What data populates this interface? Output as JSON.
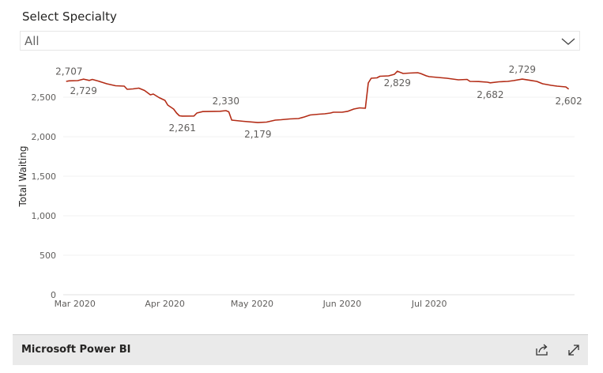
{
  "slicer": {
    "title": "Select Specialty",
    "selected": "All",
    "chevron_icon": "chevron-down-icon"
  },
  "chart_data": {
    "type": "line",
    "title": "",
    "xlabel": "",
    "ylabel": "Total Waiting",
    "ylim": [
      0,
      3000
    ],
    "yticks": [
      0,
      500,
      1000,
      1500,
      2000,
      2500
    ],
    "ytick_labels": [
      "0",
      "500",
      "1,000",
      "1,500",
      "2,000",
      "2,500"
    ],
    "xtick_labels": [
      "Mar 2020",
      "Apr 2020",
      "May 2020",
      "Jun 2020",
      "Jul 2020"
    ],
    "xtick_dates": [
      "2020-03-01",
      "2020-04-01",
      "2020-05-01",
      "2020-06-01",
      "2020-07-01"
    ],
    "gridlines": true,
    "line_color": "#b32c16",
    "series": [
      {
        "values": [
          [
            "2020-02-27",
            2700
          ],
          [
            "2020-02-28",
            2707
          ],
          [
            "2020-03-02",
            2710
          ],
          [
            "2020-03-04",
            2729
          ],
          [
            "2020-03-06",
            2712
          ],
          [
            "2020-03-07",
            2725
          ],
          [
            "2020-03-09",
            2705
          ],
          [
            "2020-03-12",
            2670
          ],
          [
            "2020-03-15",
            2645
          ],
          [
            "2020-03-18",
            2640
          ],
          [
            "2020-03-19",
            2600
          ],
          [
            "2020-03-21",
            2605
          ],
          [
            "2020-03-23",
            2615
          ],
          [
            "2020-03-25",
            2585
          ],
          [
            "2020-03-27",
            2530
          ],
          [
            "2020-03-28",
            2540
          ],
          [
            "2020-03-30",
            2495
          ],
          [
            "2020-04-01",
            2460
          ],
          [
            "2020-04-02",
            2400
          ],
          [
            "2020-04-04",
            2350
          ],
          [
            "2020-04-05",
            2300
          ],
          [
            "2020-04-06",
            2265
          ],
          [
            "2020-04-07",
            2261
          ],
          [
            "2020-04-11",
            2262
          ],
          [
            "2020-04-12",
            2300
          ],
          [
            "2020-04-14",
            2318
          ],
          [
            "2020-04-20",
            2322
          ],
          [
            "2020-04-22",
            2330
          ],
          [
            "2020-04-23",
            2315
          ],
          [
            "2020-04-24",
            2210
          ],
          [
            "2020-04-28",
            2195
          ],
          [
            "2020-05-03",
            2179
          ],
          [
            "2020-05-06",
            2185
          ],
          [
            "2020-05-09",
            2210
          ],
          [
            "2020-05-11",
            2215
          ],
          [
            "2020-05-14",
            2225
          ],
          [
            "2020-05-17",
            2230
          ],
          [
            "2020-05-19",
            2250
          ],
          [
            "2020-05-21",
            2275
          ],
          [
            "2020-05-24",
            2285
          ],
          [
            "2020-05-26",
            2290
          ],
          [
            "2020-05-28",
            2300
          ],
          [
            "2020-05-29",
            2310
          ],
          [
            "2020-06-01",
            2310
          ],
          [
            "2020-06-03",
            2322
          ],
          [
            "2020-06-05",
            2350
          ],
          [
            "2020-06-07",
            2365
          ],
          [
            "2020-06-09",
            2360
          ],
          [
            "2020-06-10",
            2680
          ],
          [
            "2020-06-11",
            2740
          ],
          [
            "2020-06-13",
            2745
          ],
          [
            "2020-06-14",
            2765
          ],
          [
            "2020-06-17",
            2770
          ],
          [
            "2020-06-19",
            2790
          ],
          [
            "2020-06-20",
            2829
          ],
          [
            "2020-06-22",
            2800
          ],
          [
            "2020-06-24",
            2805
          ],
          [
            "2020-06-27",
            2810
          ],
          [
            "2020-06-28",
            2800
          ],
          [
            "2020-06-30",
            2770
          ],
          [
            "2020-07-01",
            2760
          ],
          [
            "2020-07-04",
            2750
          ],
          [
            "2020-07-07",
            2740
          ],
          [
            "2020-07-11",
            2720
          ],
          [
            "2020-07-14",
            2725
          ],
          [
            "2020-07-15",
            2700
          ],
          [
            "2020-07-18",
            2698
          ],
          [
            "2020-07-21",
            2690
          ],
          [
            "2020-07-22",
            2682
          ],
          [
            "2020-07-25",
            2695
          ],
          [
            "2020-07-28",
            2700
          ],
          [
            "2020-07-30",
            2710
          ],
          [
            "2020-08-02",
            2729
          ],
          [
            "2020-08-05",
            2712
          ],
          [
            "2020-08-07",
            2700
          ],
          [
            "2020-08-09",
            2670
          ],
          [
            "2020-08-12",
            2650
          ],
          [
            "2020-08-14",
            2640
          ],
          [
            "2020-08-17",
            2630
          ],
          [
            "2020-08-18",
            2602
          ]
        ]
      }
    ],
    "data_labels": [
      {
        "date": "2020-02-28",
        "value": 2707,
        "text": "2,707",
        "place": "above"
      },
      {
        "date": "2020-03-04",
        "value": 2729,
        "text": "2,729",
        "place": "below"
      },
      {
        "date": "2020-04-07",
        "value": 2261,
        "text": "2,261",
        "place": "below"
      },
      {
        "date": "2020-04-22",
        "value": 2330,
        "text": "2,330",
        "place": "above"
      },
      {
        "date": "2020-05-03",
        "value": 2179,
        "text": "2,179",
        "place": "below"
      },
      {
        "date": "2020-06-20",
        "value": 2829,
        "text": "2,829",
        "place": "below"
      },
      {
        "date": "2020-07-22",
        "value": 2682,
        "text": "2,682",
        "place": "below"
      },
      {
        "date": "2020-08-02",
        "value": 2729,
        "text": "2,729",
        "place": "above"
      },
      {
        "date": "2020-08-18",
        "value": 2602,
        "text": "2,602",
        "place": "below"
      }
    ]
  },
  "footer": {
    "brand": "Microsoft Power BI",
    "share_icon": "share-icon",
    "expand_icon": "expand-icon"
  }
}
